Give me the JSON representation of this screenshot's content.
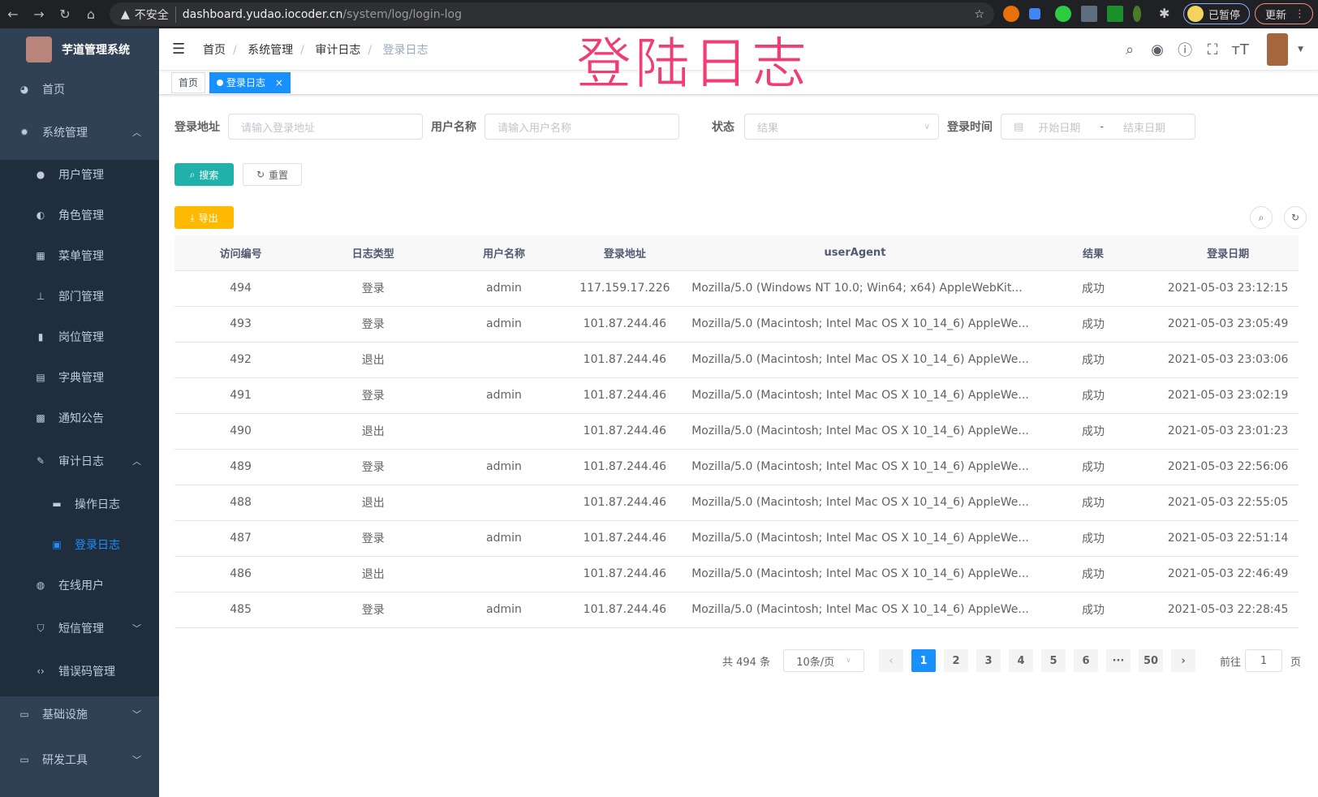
{
  "browser": {
    "not_secure": "不安全",
    "url_host": "dashboard.yudao.iocoder.cn",
    "url_path": "/system/log/login-log",
    "paused": "已暂停",
    "update": "更新"
  },
  "overlay_title": "登陆日志",
  "sidebar": {
    "app_title": "芋道管理系统",
    "active_color": "#1890ff",
    "items": [
      {
        "label": "首页",
        "icon": "dashboard-icon"
      },
      {
        "label": "系统管理",
        "icon": "gear-icon",
        "arrow": "up"
      },
      {
        "label": "用户管理",
        "icon": "user-icon"
      },
      {
        "label": "角色管理",
        "icon": "role-icon"
      },
      {
        "label": "菜单管理",
        "icon": "menu-icon"
      },
      {
        "label": "部门管理",
        "icon": "tree-icon"
      },
      {
        "label": "岗位管理",
        "icon": "post-icon"
      },
      {
        "label": "字典管理",
        "icon": "dict-icon"
      },
      {
        "label": "通知公告",
        "icon": "message-icon"
      },
      {
        "label": "审计日志",
        "icon": "edit-icon",
        "arrow": "up"
      },
      {
        "label": "操作日志",
        "icon": "form-icon"
      },
      {
        "label": "登录日志",
        "icon": "logininfor-icon",
        "active": true
      },
      {
        "label": "在线用户",
        "icon": "online-icon"
      },
      {
        "label": "短信管理",
        "icon": "shield-icon",
        "arrow": "down"
      },
      {
        "label": "错误码管理",
        "icon": "code-icon"
      },
      {
        "label": "基础设施",
        "icon": "monitor-icon",
        "arrow": "down"
      },
      {
        "label": "研发工具",
        "icon": "tool-icon",
        "arrow": "down"
      }
    ]
  },
  "breadcrumb": [
    "首页",
    "系统管理",
    "审计日志",
    "登录日志"
  ],
  "tags": [
    {
      "label": "首页"
    },
    {
      "label": "登录日志",
      "active": true,
      "close": "×"
    }
  ],
  "filters": {
    "address": {
      "label": "登录地址",
      "placeholder": "请输入登录地址"
    },
    "username": {
      "label": "用户名称",
      "placeholder": "请输入用户名称"
    },
    "status": {
      "label": "状态",
      "placeholder": "结果"
    },
    "time": {
      "label": "登录时间",
      "start": "开始日期",
      "sep": "-",
      "end": "结束日期"
    }
  },
  "buttons": {
    "search": "搜索",
    "reset": "重置",
    "export": "导出"
  },
  "table": {
    "columns": [
      "访问编号",
      "日志类型",
      "用户名称",
      "登录地址",
      "userAgent",
      "结果",
      "登录日期"
    ],
    "rows": [
      [
        "494",
        "登录",
        "admin",
        "117.159.17.226",
        "Mozilla/5.0 (Windows NT 10.0; Win64; x64) AppleWebKit...",
        "成功",
        "2021-05-03 23:12:15"
      ],
      [
        "493",
        "登录",
        "admin",
        "101.87.244.46",
        "Mozilla/5.0 (Macintosh; Intel Mac OS X 10_14_6) AppleWe...",
        "成功",
        "2021-05-03 23:05:49"
      ],
      [
        "492",
        "退出",
        "",
        "101.87.244.46",
        "Mozilla/5.0 (Macintosh; Intel Mac OS X 10_14_6) AppleWe...",
        "成功",
        "2021-05-03 23:03:06"
      ],
      [
        "491",
        "登录",
        "admin",
        "101.87.244.46",
        "Mozilla/5.0 (Macintosh; Intel Mac OS X 10_14_6) AppleWe...",
        "成功",
        "2021-05-03 23:02:19"
      ],
      [
        "490",
        "退出",
        "",
        "101.87.244.46",
        "Mozilla/5.0 (Macintosh; Intel Mac OS X 10_14_6) AppleWe...",
        "成功",
        "2021-05-03 23:01:23"
      ],
      [
        "489",
        "登录",
        "admin",
        "101.87.244.46",
        "Mozilla/5.0 (Macintosh; Intel Mac OS X 10_14_6) AppleWe...",
        "成功",
        "2021-05-03 22:56:06"
      ],
      [
        "488",
        "退出",
        "",
        "101.87.244.46",
        "Mozilla/5.0 (Macintosh; Intel Mac OS X 10_14_6) AppleWe...",
        "成功",
        "2021-05-03 22:55:05"
      ],
      [
        "487",
        "登录",
        "admin",
        "101.87.244.46",
        "Mozilla/5.0 (Macintosh; Intel Mac OS X 10_14_6) AppleWe...",
        "成功",
        "2021-05-03 22:51:14"
      ],
      [
        "486",
        "退出",
        "",
        "101.87.244.46",
        "Mozilla/5.0 (Macintosh; Intel Mac OS X 10_14_6) AppleWe...",
        "成功",
        "2021-05-03 22:46:49"
      ],
      [
        "485",
        "登录",
        "admin",
        "101.87.244.46",
        "Mozilla/5.0 (Macintosh; Intel Mac OS X 10_14_6) AppleWe...",
        "成功",
        "2021-05-03 22:28:45"
      ]
    ]
  },
  "pagination": {
    "total": "共 494 条",
    "page_size": "10条/页",
    "pages": [
      "1",
      "2",
      "3",
      "4",
      "5",
      "6",
      "···",
      "50"
    ],
    "current": "1",
    "goto_label": "前往",
    "goto_value": "1",
    "goto_suffix": "页"
  }
}
